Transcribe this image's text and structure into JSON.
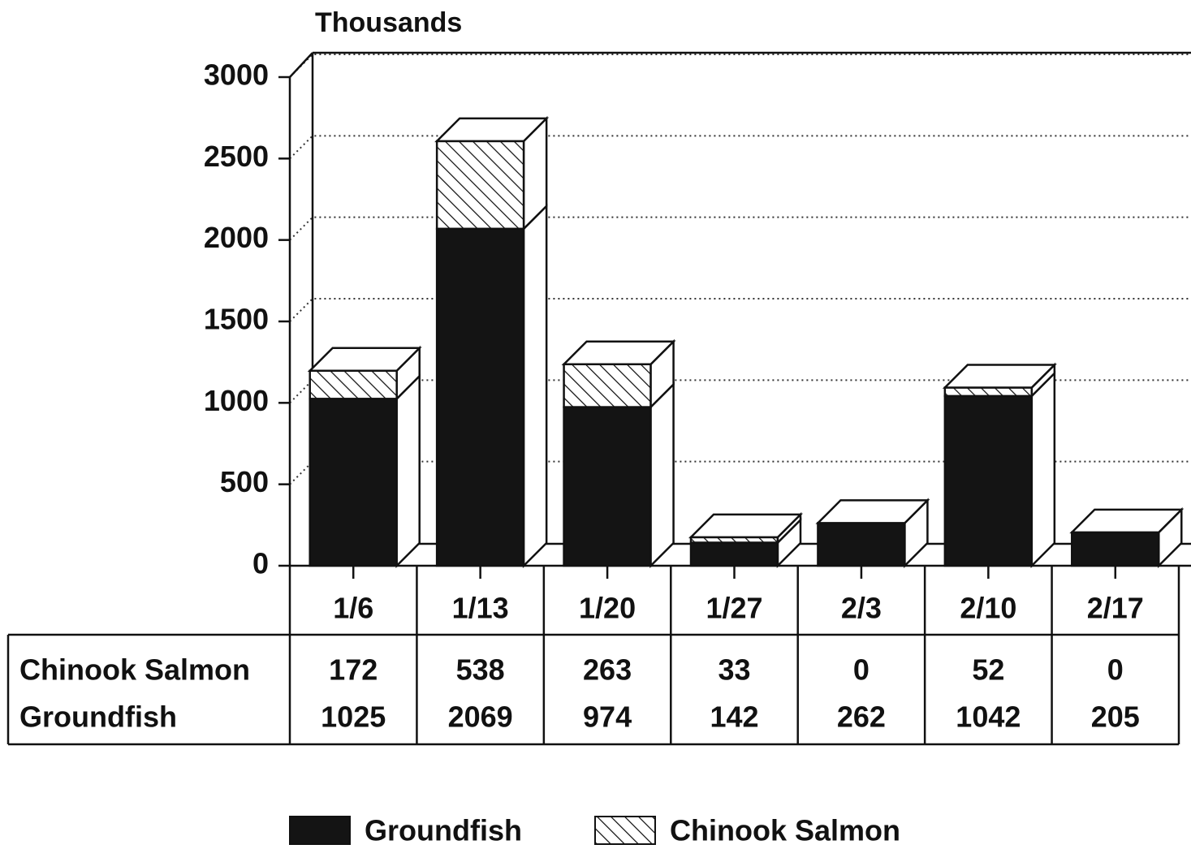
{
  "chart_data": {
    "type": "bar",
    "stacked": true,
    "three_d": true,
    "y_label": "Thousands",
    "categories": [
      "1/6",
      "1/13",
      "1/20",
      "1/27",
      "2/3",
      "2/10",
      "2/17"
    ],
    "series": [
      {
        "name": "Groundfish",
        "color": "#141414",
        "pattern": "solid",
        "values": [
          1025,
          2069,
          974,
          142,
          262,
          1042,
          205
        ]
      },
      {
        "name": "Chinook Salmon",
        "color": "#ffffff",
        "pattern": "hatch",
        "values": [
          172,
          538,
          263,
          33,
          0,
          52,
          0
        ]
      }
    ],
    "ylim": [
      0,
      3000
    ],
    "yticks": [
      0,
      500,
      1000,
      1500,
      2000,
      2500,
      3000
    ],
    "grid": true,
    "data_table": true,
    "legend": "bottom"
  }
}
